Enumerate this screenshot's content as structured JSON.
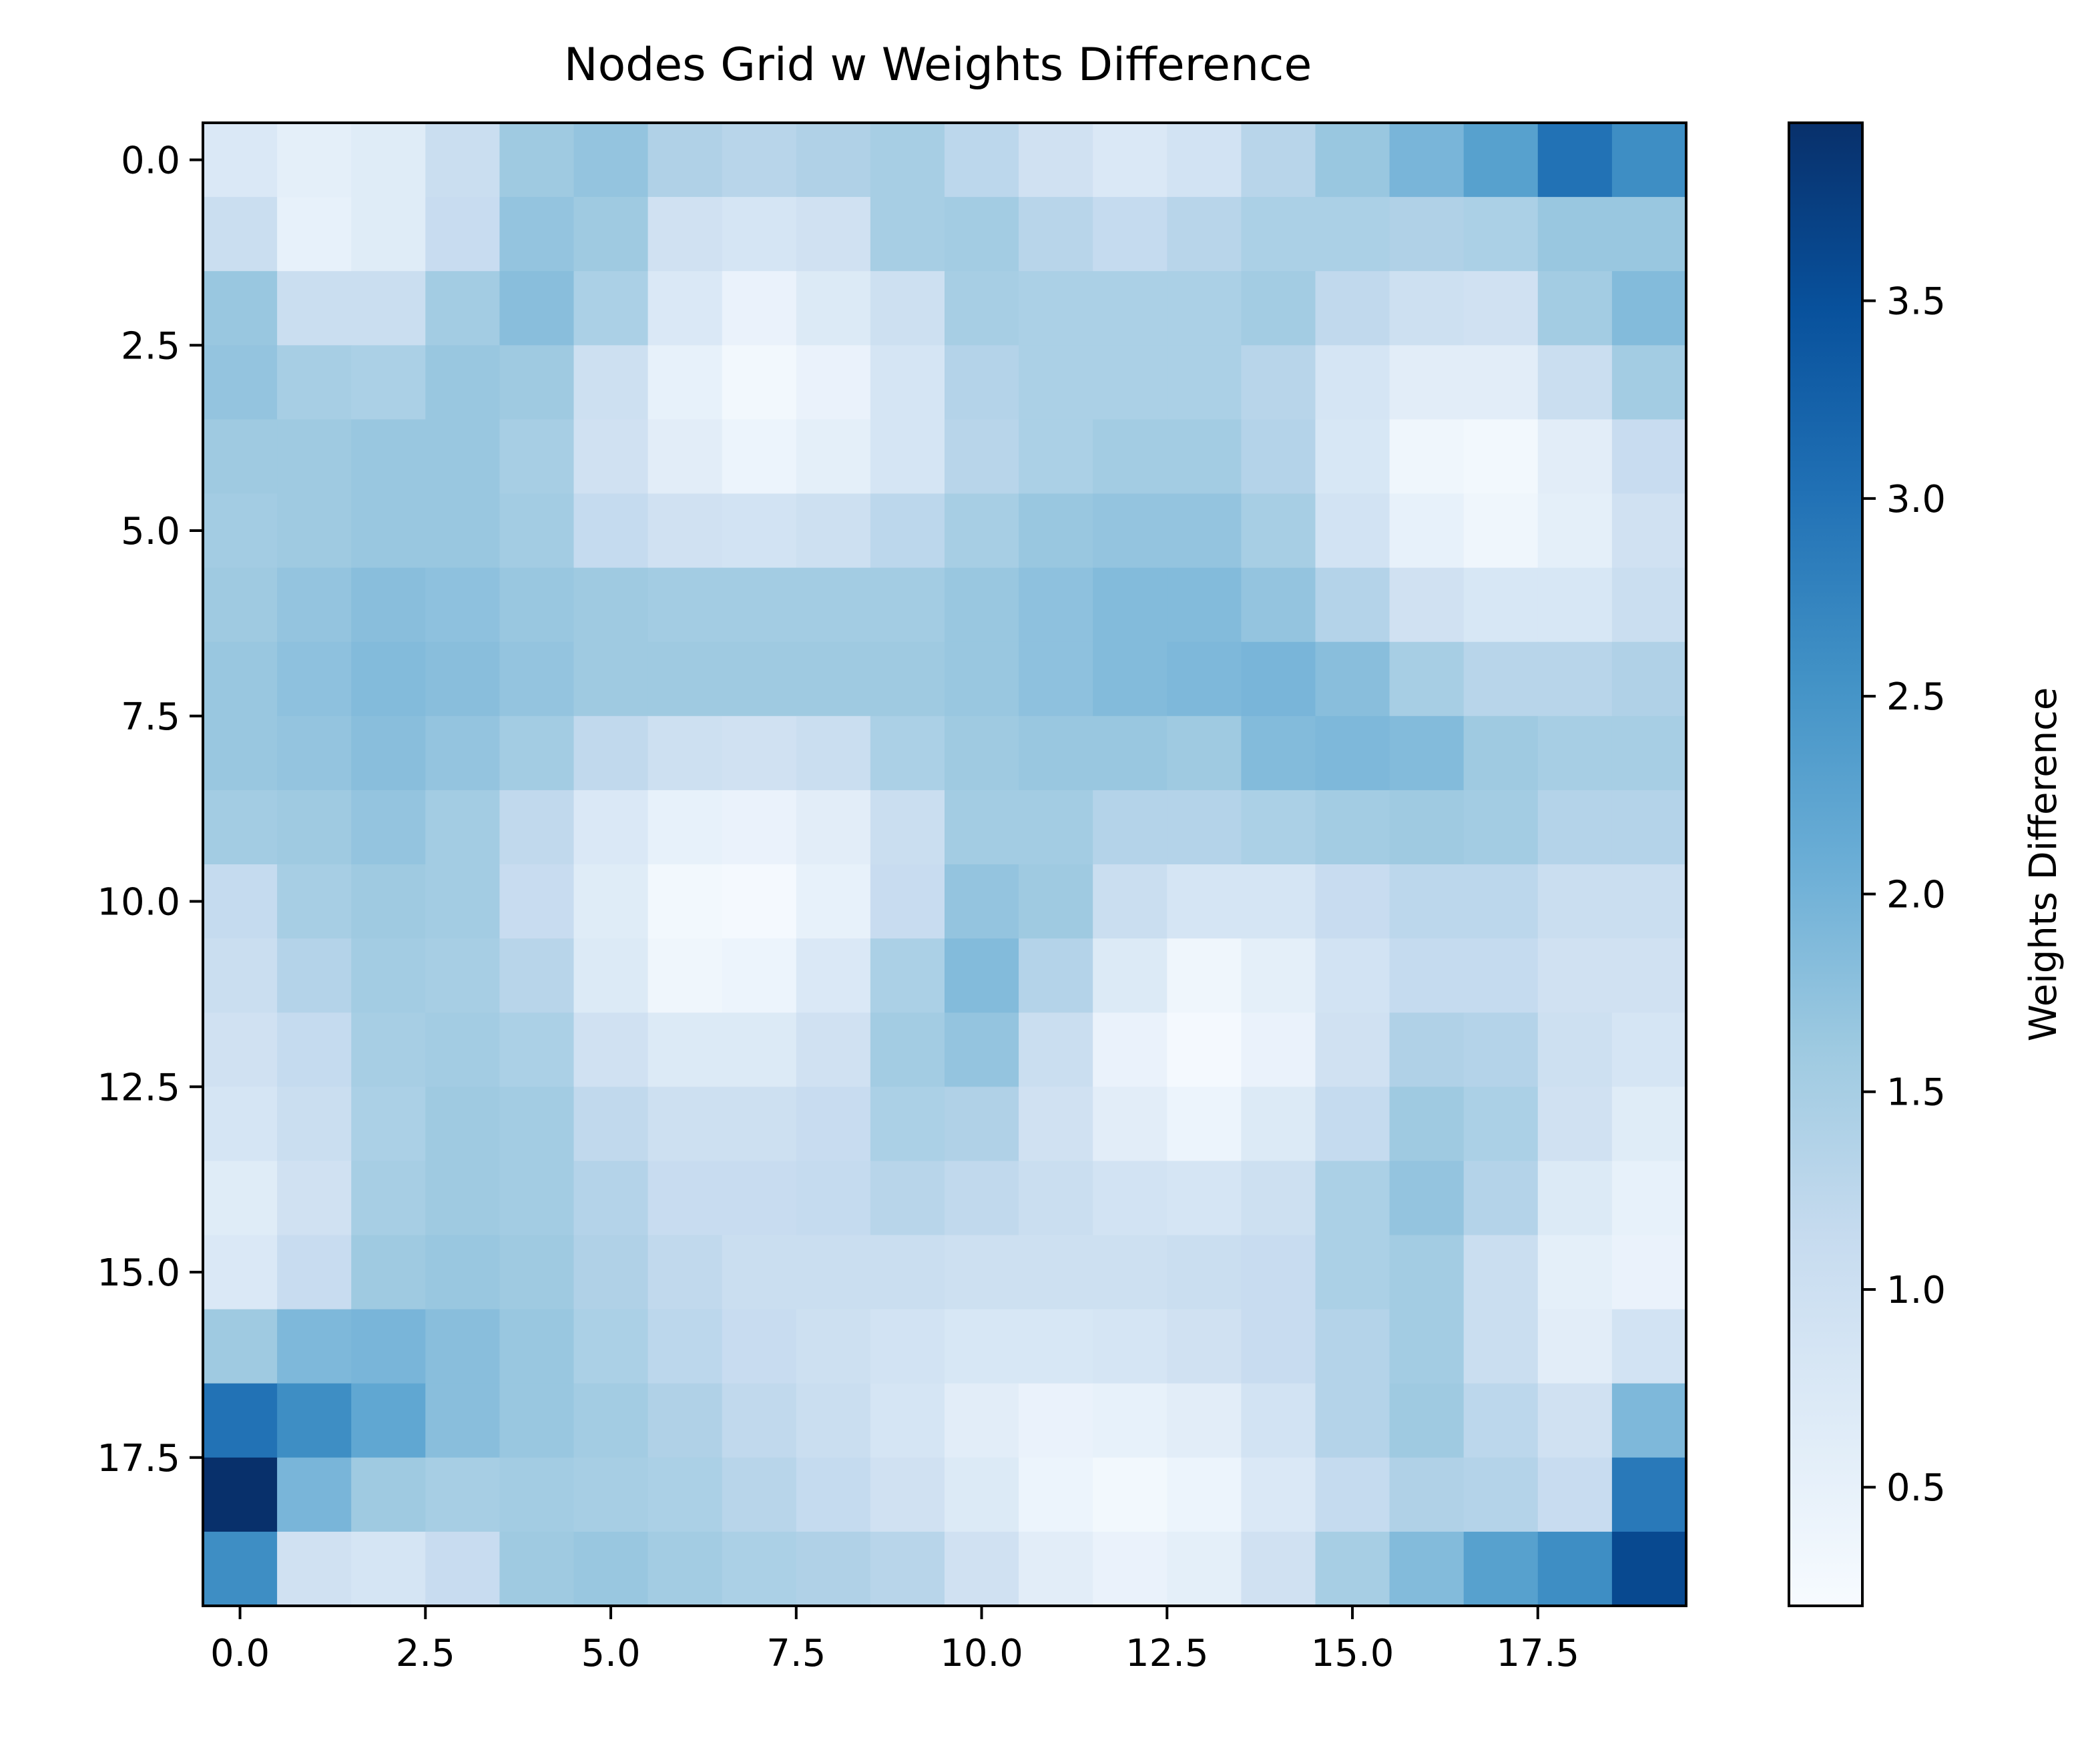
{
  "chart_data": {
    "type": "heatmap",
    "title": "Nodes Grid w Weights Difference",
    "xlabel": "",
    "ylabel": "",
    "colorbar_label": "Weights Difference",
    "colormap": "Blues",
    "colormap_stops": [
      "#f7fbff",
      "#deebf7",
      "#c6dbef",
      "#9ecae1",
      "#6baed6",
      "#4292c6",
      "#2171b5",
      "#08519c",
      "#08306b"
    ],
    "value_range": [
      0.2,
      3.95
    ],
    "xlim": [
      -0.5,
      19.5
    ],
    "ylim": [
      19.5,
      -0.5
    ],
    "x_ticks": [
      0,
      2.5,
      5,
      7.5,
      10,
      12.5,
      15,
      17.5
    ],
    "x_tick_labels": [
      "0.0",
      "2.5",
      "5.0",
      "7.5",
      "10.0",
      "12.5",
      "15.0",
      "17.5"
    ],
    "y_ticks": [
      0,
      2.5,
      5,
      7.5,
      10,
      12.5,
      15,
      17.5
    ],
    "y_tick_labels": [
      "0.0",
      "2.5",
      "5.0",
      "7.5",
      "10.0",
      "12.5",
      "15.0",
      "17.5"
    ],
    "colorbar_ticks": [
      0.5,
      1.0,
      1.5,
      2.0,
      2.5,
      3.0,
      3.5
    ],
    "colorbar_tick_labels": [
      "0.5",
      "1.0",
      "1.5",
      "2.0",
      "2.5",
      "3.0",
      "3.5"
    ],
    "grid": false,
    "values": [
      [
        0.75,
        0.55,
        0.65,
        1.05,
        1.6,
        1.7,
        1.4,
        1.3,
        1.4,
        1.5,
        1.25,
        0.95,
        0.75,
        0.9,
        1.3,
        1.65,
        1.95,
        2.3,
        3.0,
        2.6
      ],
      [
        1.05,
        0.5,
        0.65,
        1.1,
        1.7,
        1.6,
        0.95,
        0.85,
        0.95,
        1.5,
        1.55,
        1.3,
        1.15,
        1.3,
        1.45,
        1.45,
        1.4,
        1.45,
        1.65,
        1.65
      ],
      [
        1.65,
        1.05,
        1.05,
        1.55,
        1.8,
        1.45,
        0.75,
        0.45,
        0.7,
        1.0,
        1.5,
        1.45,
        1.45,
        1.45,
        1.55,
        1.2,
        1.0,
        0.95,
        1.55,
        1.85
      ],
      [
        1.7,
        1.5,
        1.45,
        1.65,
        1.6,
        1.0,
        0.5,
        0.3,
        0.45,
        0.85,
        1.35,
        1.45,
        1.45,
        1.45,
        1.3,
        0.85,
        0.6,
        0.6,
        1.05,
        1.55
      ],
      [
        1.6,
        1.6,
        1.65,
        1.65,
        1.5,
        0.95,
        0.6,
        0.4,
        0.55,
        0.85,
        1.3,
        1.45,
        1.55,
        1.55,
        1.35,
        0.8,
        0.35,
        0.3,
        0.6,
        1.1
      ],
      [
        1.55,
        1.6,
        1.65,
        1.65,
        1.55,
        1.15,
        0.95,
        0.9,
        1.0,
        1.25,
        1.5,
        1.65,
        1.7,
        1.7,
        1.5,
        0.9,
        0.5,
        0.35,
        0.55,
        0.95
      ],
      [
        1.6,
        1.7,
        1.8,
        1.75,
        1.65,
        1.6,
        1.55,
        1.55,
        1.55,
        1.55,
        1.65,
        1.75,
        1.85,
        1.85,
        1.7,
        1.35,
        0.95,
        0.8,
        0.8,
        1.05
      ],
      [
        1.65,
        1.75,
        1.85,
        1.8,
        1.7,
        1.6,
        1.6,
        1.6,
        1.6,
        1.6,
        1.65,
        1.75,
        1.85,
        1.9,
        1.95,
        1.8,
        1.5,
        1.3,
        1.3,
        1.4
      ],
      [
        1.65,
        1.7,
        1.8,
        1.7,
        1.55,
        1.2,
        1.0,
        0.95,
        1.05,
        1.45,
        1.6,
        1.65,
        1.65,
        1.6,
        1.85,
        1.9,
        1.85,
        1.6,
        1.5,
        1.5
      ],
      [
        1.55,
        1.6,
        1.7,
        1.55,
        1.2,
        0.75,
        0.5,
        0.45,
        0.6,
        1.05,
        1.55,
        1.55,
        1.35,
        1.35,
        1.45,
        1.55,
        1.6,
        1.55,
        1.35,
        1.35
      ],
      [
        1.15,
        1.5,
        1.6,
        1.55,
        1.1,
        0.65,
        0.3,
        0.25,
        0.5,
        1.1,
        1.7,
        1.6,
        1.05,
        0.85,
        0.85,
        1.1,
        1.25,
        1.25,
        1.05,
        1.05
      ],
      [
        1.05,
        1.35,
        1.55,
        1.5,
        1.3,
        0.7,
        0.35,
        0.4,
        0.75,
        1.45,
        1.85,
        1.35,
        0.7,
        0.35,
        0.55,
        0.9,
        1.15,
        1.15,
        0.95,
        0.95
      ],
      [
        0.95,
        1.15,
        1.5,
        1.55,
        1.45,
        0.95,
        0.7,
        0.7,
        0.95,
        1.55,
        1.7,
        1.05,
        0.45,
        0.25,
        0.45,
        0.95,
        1.4,
        1.35,
        1.0,
        0.85
      ],
      [
        0.85,
        1.05,
        1.45,
        1.6,
        1.55,
        1.2,
        1.0,
        1.0,
        1.1,
        1.45,
        1.4,
        0.95,
        0.6,
        0.4,
        0.7,
        1.15,
        1.6,
        1.45,
        0.95,
        0.65
      ],
      [
        0.65,
        0.95,
        1.5,
        1.6,
        1.55,
        1.35,
        1.1,
        1.1,
        1.15,
        1.3,
        1.2,
        1.05,
        0.9,
        0.85,
        1.0,
        1.45,
        1.7,
        1.35,
        0.7,
        0.5
      ],
      [
        0.75,
        1.1,
        1.6,
        1.65,
        1.6,
        1.4,
        1.2,
        1.05,
        1.05,
        1.05,
        1.0,
        1.0,
        1.0,
        1.05,
        1.1,
        1.45,
        1.55,
        1.05,
        0.55,
        0.45
      ],
      [
        1.6,
        1.9,
        1.95,
        1.8,
        1.65,
        1.45,
        1.25,
        1.1,
        1.0,
        0.9,
        0.8,
        0.8,
        0.85,
        0.95,
        1.1,
        1.35,
        1.55,
        1.05,
        0.6,
        0.9
      ],
      [
        3.0,
        2.6,
        2.2,
        1.8,
        1.65,
        1.55,
        1.4,
        1.2,
        1.05,
        0.85,
        0.6,
        0.45,
        0.5,
        0.6,
        0.9,
        1.35,
        1.6,
        1.25,
        0.95,
        1.9
      ],
      [
        3.95,
        1.95,
        1.6,
        1.5,
        1.55,
        1.5,
        1.45,
        1.3,
        1.15,
        0.95,
        0.7,
        0.4,
        0.3,
        0.4,
        0.75,
        1.15,
        1.4,
        1.35,
        1.1,
        2.9
      ],
      [
        2.6,
        0.95,
        0.85,
        1.1,
        1.6,
        1.65,
        1.55,
        1.45,
        1.4,
        1.3,
        0.95,
        0.6,
        0.45,
        0.55,
        0.95,
        1.5,
        1.85,
        2.3,
        2.6,
        3.6
      ]
    ]
  }
}
